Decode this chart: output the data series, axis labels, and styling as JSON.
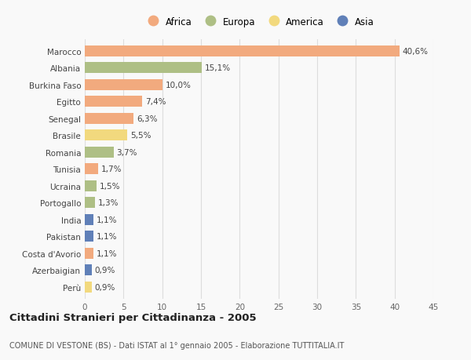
{
  "categories": [
    "Marocco",
    "Albania",
    "Burkina Faso",
    "Egitto",
    "Senegal",
    "Brasile",
    "Romania",
    "Tunisia",
    "Ucraina",
    "Portogallo",
    "India",
    "Pakistan",
    "Costa d'Avorio",
    "Azerbaigian",
    "Perù"
  ],
  "values": [
    40.6,
    15.1,
    10.0,
    7.4,
    6.3,
    5.5,
    3.7,
    1.7,
    1.5,
    1.3,
    1.1,
    1.1,
    1.1,
    0.9,
    0.9
  ],
  "labels": [
    "40,6%",
    "15,1%",
    "10,0%",
    "7,4%",
    "6,3%",
    "5,5%",
    "3,7%",
    "1,7%",
    "1,5%",
    "1,3%",
    "1,1%",
    "1,1%",
    "1,1%",
    "0,9%",
    "0,9%"
  ],
  "continents": [
    "Africa",
    "Europa",
    "Africa",
    "Africa",
    "Africa",
    "America",
    "Europa",
    "Africa",
    "Europa",
    "Europa",
    "Asia",
    "Asia",
    "Africa",
    "Asia",
    "America"
  ],
  "continent_colors": {
    "Africa": "#F2AA7E",
    "Europa": "#AEBF85",
    "America": "#F2D97E",
    "Asia": "#6080B8"
  },
  "legend_items": [
    "Africa",
    "Europa",
    "America",
    "Asia"
  ],
  "legend_colors": [
    "#F2AA7E",
    "#AEBF85",
    "#F2D97E",
    "#6080B8"
  ],
  "xlim": [
    0,
    45
  ],
  "xticks": [
    0,
    5,
    10,
    15,
    20,
    25,
    30,
    35,
    40,
    45
  ],
  "title": "Cittadini Stranieri per Cittadinanza - 2005",
  "subtitle": "COMUNE DI VESTONE (BS) - Dati ISTAT al 1° gennaio 2005 - Elaborazione TUTTITALIA.IT",
  "background_color": "#f9f9f9",
  "bar_height": 0.65,
  "label_fontsize": 7.5,
  "tick_fontsize": 7.5,
  "title_fontsize": 9.5,
  "subtitle_fontsize": 7.0,
  "grid_color": "#dddddd"
}
